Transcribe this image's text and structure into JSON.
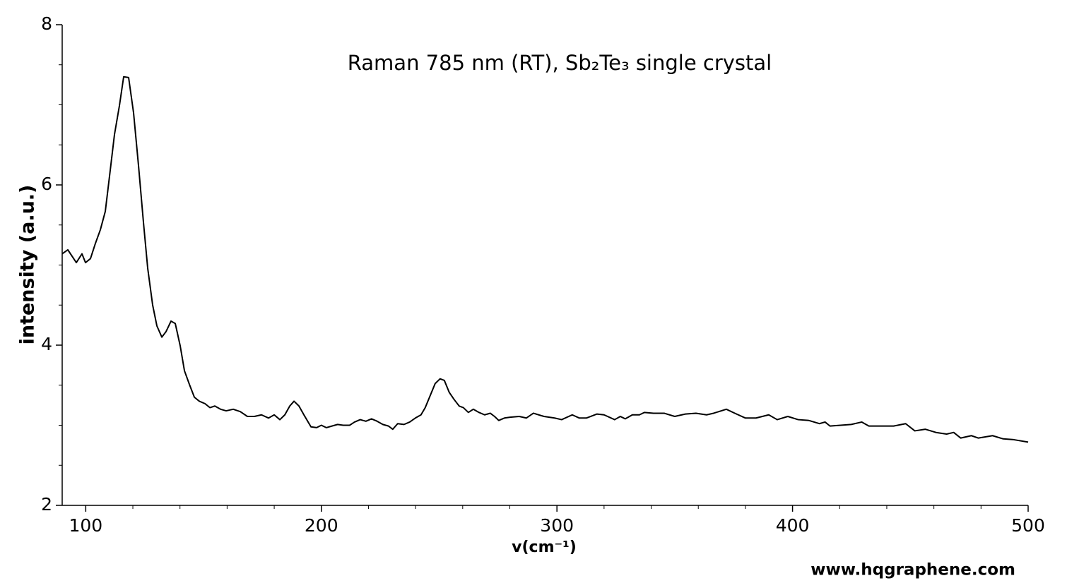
{
  "chart_data": {
    "type": "line",
    "title": "Raman 785 nm (RT), Sb₂Te₃ single crystal",
    "x_label": "v(cm⁻¹)",
    "y_label": "intensity (a.u.)",
    "annotation": "www.hqgraphene.com",
    "color": "#000000",
    "xlim": [
      90,
      500
    ],
    "ylim": [
      2,
      8
    ],
    "xticks": [
      100,
      200,
      300,
      400,
      500
    ],
    "yticks": [
      2,
      4,
      6,
      8
    ],
    "xminorticks": [
      120,
      140,
      160,
      180,
      220,
      240,
      260,
      280,
      320,
      340,
      360,
      380,
      420,
      440,
      460,
      480
    ],
    "yminorticks": [
      2.5,
      3,
      3.5,
      4.5,
      5,
      5.5,
      6.5,
      7,
      7.5
    ],
    "x": [
      90,
      92.4,
      96,
      98.4,
      99.9,
      102,
      104.1,
      106.2,
      108.3,
      110.1,
      112.2,
      114.3,
      116.1,
      118.2,
      120.3,
      122.4,
      124.5,
      126.3,
      128.4,
      130.2,
      132.3,
      134.1,
      136.2,
      138,
      140.1,
      141.9,
      144,
      146.1,
      148.2,
      150.6,
      152.7,
      154.8,
      157.2,
      159.6,
      162.6,
      165.6,
      168.6,
      171.6,
      174.6,
      177.6,
      180,
      182.4,
      184.5,
      186.6,
      188.4,
      190.5,
      192.6,
      195.6,
      198,
      200,
      202.1,
      204.5,
      206.9,
      209.3,
      212,
      214.1,
      216.5,
      218.9,
      221.3,
      223.7,
      226.1,
      228.5,
      230.3,
      232.4,
      235.1,
      237.5,
      239.9,
      242.3,
      244.1,
      246.2,
      248.3,
      250.4,
      252.2,
      254.3,
      256.4,
      258.5,
      260.3,
      262.4,
      264.5,
      266.9,
      269.3,
      271.7,
      273.5,
      275.3,
      277.7,
      280.1,
      284,
      287,
      290,
      294.5,
      299,
      302,
      306.5,
      309.5,
      312.5,
      317,
      320,
      324.5,
      326.9,
      329,
      332,
      335,
      337.1,
      341,
      345.5,
      350,
      354.5,
      359,
      363.5,
      366.5,
      371.9,
      375.5,
      380,
      384.5,
      389.9,
      393.5,
      398,
      402.4,
      406.9,
      411.4,
      413.8,
      415.9,
      420.4,
      424.9,
      429.4,
      432.4,
      438.4,
      442.9,
      448,
      451.9,
      456.4,
      460.9,
      465.4,
      468.4,
      471.4,
      475.9,
      478.9,
      484.9,
      489.4,
      493.9,
      500
    ],
    "values": [
      5.14,
      5.19,
      5.03,
      5.14,
      5.03,
      5.08,
      5.27,
      5.44,
      5.67,
      6.11,
      6.63,
      6.99,
      7.35,
      7.34,
      6.9,
      6.24,
      5.53,
      4.96,
      4.5,
      4.24,
      4.1,
      4.17,
      4.3,
      4.27,
      3.99,
      3.68,
      3.51,
      3.35,
      3.3,
      3.27,
      3.22,
      3.24,
      3.2,
      3.18,
      3.2,
      3.17,
      3.11,
      3.11,
      3.13,
      3.09,
      3.13,
      3.07,
      3.13,
      3.24,
      3.3,
      3.24,
      3.13,
      2.98,
      2.97,
      3,
      2.97,
      2.99,
      3.01,
      3,
      3,
      3.04,
      3.07,
      3.05,
      3.08,
      3.05,
      3.01,
      2.99,
      2.95,
      3.02,
      3.01,
      3.04,
      3.09,
      3.13,
      3.22,
      3.37,
      3.52,
      3.58,
      3.56,
      3.41,
      3.32,
      3.24,
      3.22,
      3.16,
      3.2,
      3.16,
      3.13,
      3.15,
      3.11,
      3.06,
      3.09,
      3.1,
      3.11,
      3.09,
      3.15,
      3.11,
      3.09,
      3.07,
      3.13,
      3.09,
      3.09,
      3.14,
      3.13,
      3.07,
      3.11,
      3.08,
      3.13,
      3.13,
      3.16,
      3.15,
      3.15,
      3.11,
      3.14,
      3.15,
      3.13,
      3.15,
      3.2,
      3.15,
      3.09,
      3.09,
      3.13,
      3.07,
      3.11,
      3.07,
      3.06,
      3.02,
      3.04,
      2.99,
      3,
      3.01,
      3.04,
      2.99,
      2.99,
      2.99,
      3.02,
      2.93,
      2.95,
      2.91,
      2.89,
      2.91,
      2.84,
      2.87,
      2.84,
      2.87,
      2.83,
      2.82,
      2.79
    ]
  }
}
